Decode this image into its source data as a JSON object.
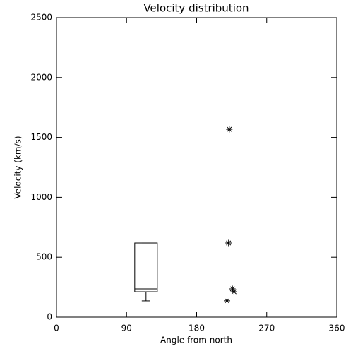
{
  "chart_data": {
    "type": "box",
    "title": "Velocity distribution",
    "x_label": "Angle from north",
    "y_label": "Velocity (km/s)",
    "xlim": [
      0,
      360
    ],
    "xticks": [
      0,
      90,
      180,
      270,
      360
    ],
    "ylim": [
      0,
      2500
    ],
    "yticks": [
      0,
      500,
      1000,
      1500,
      2000,
      2500
    ],
    "color": "#000000",
    "box": {
      "x": 115,
      "whislo": 136,
      "q1": 212,
      "median": 236,
      "q3": 619,
      "whishi": 619
    },
    "points": {
      "x": [
        222,
        221,
        226,
        228,
        219
      ],
      "y": [
        1568,
        619,
        236,
        212,
        136
      ]
    }
  }
}
